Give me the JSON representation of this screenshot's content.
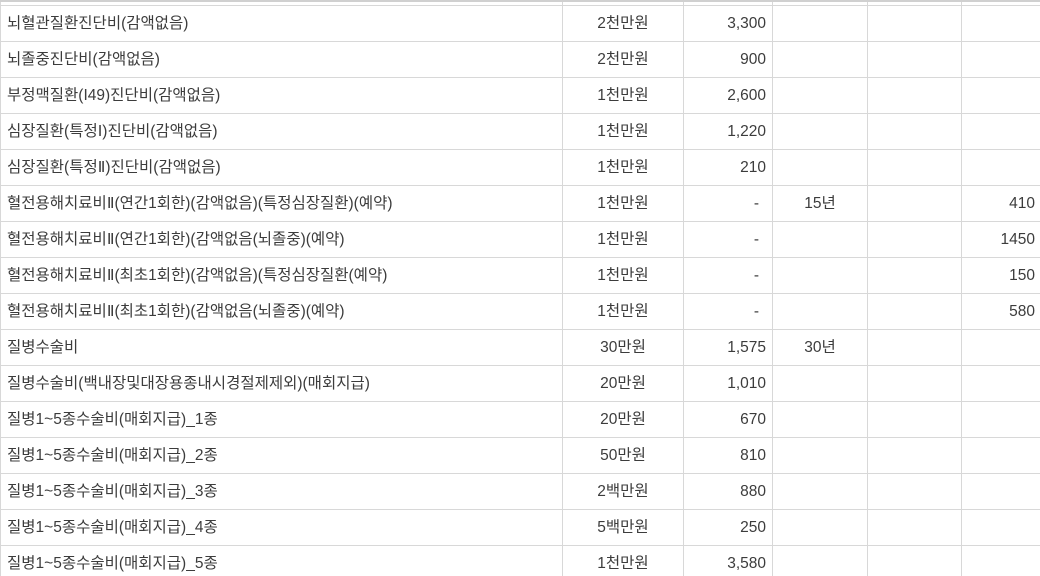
{
  "colors": {
    "grid": "#d8d8d8",
    "text": "#3c3c3c",
    "background": "#ffffff",
    "top_edge": "#d0d0d0"
  },
  "table": {
    "columns": [
      {
        "key": "item",
        "role": "coverage-item-name",
        "align": "left"
      },
      {
        "key": "amount",
        "role": "coverage-amount",
        "align": "center"
      },
      {
        "key": "premium",
        "role": "premium-value",
        "align": "right"
      },
      {
        "key": "period",
        "role": "term-period",
        "align": "center"
      },
      {
        "key": "extra",
        "role": "empty-column",
        "align": "center"
      },
      {
        "key": "value",
        "role": "right-value",
        "align": "right"
      }
    ],
    "rows": [
      {
        "item": "뇌혈관질환진단비(감액없음)",
        "amount": "2천만원",
        "premium": "3,300",
        "period": "",
        "extra": "",
        "value": ""
      },
      {
        "item": "뇌졸중진단비(감액없음)",
        "amount": "2천만원",
        "premium": "900",
        "period": "",
        "extra": "",
        "value": ""
      },
      {
        "item": "부정맥질환(I49)진단비(감액없음)",
        "amount": "1천만원",
        "premium": "2,600",
        "period": "",
        "extra": "",
        "value": ""
      },
      {
        "item": "심장질환(특정Ⅰ)진단비(감액없음)",
        "amount": "1천만원",
        "premium": "1,220",
        "period": "",
        "extra": "",
        "value": ""
      },
      {
        "item": "심장질환(특정Ⅱ)진단비(감액없음)",
        "amount": "1천만원",
        "premium": "210",
        "period": "",
        "extra": "",
        "value": ""
      },
      {
        "item": "혈전용해치료비Ⅱ(연간1회한)(감액없음)(특정심장질환)(예약)",
        "amount": "1천만원",
        "premium": "-",
        "period": "15년",
        "extra": "",
        "value": "410"
      },
      {
        "item": "혈전용해치료비Ⅱ(연간1회한)(감액없음(뇌졸중)(예약)",
        "amount": "1천만원",
        "premium": "-",
        "period": "",
        "extra": "",
        "value": "1450"
      },
      {
        "item": "혈전용해치료비Ⅱ(최초1회한)(감액없음)(특정심장질환(예약)",
        "amount": "1천만원",
        "premium": "-",
        "period": "",
        "extra": "",
        "value": "150"
      },
      {
        "item": "혈전용해치료비Ⅱ(최초1회한)(감액없음(뇌졸중)(예약)",
        "amount": "1천만원",
        "premium": "-",
        "period": "",
        "extra": "",
        "value": "580"
      },
      {
        "item": "질병수술비",
        "amount": "30만원",
        "premium": "1,575",
        "period": "30년",
        "extra": "",
        "value": ""
      },
      {
        "item": "질병수술비(백내장및대장용종내시경절제제외)(매회지급)",
        "amount": "20만원",
        "premium": "1,010",
        "period": "",
        "extra": "",
        "value": ""
      },
      {
        "item": "질병1~5종수술비(매회지급)_1종",
        "amount": "20만원",
        "premium": "670",
        "period": "",
        "extra": "",
        "value": ""
      },
      {
        "item": "질병1~5종수술비(매회지급)_2종",
        "amount": "50만원",
        "premium": "810",
        "period": "",
        "extra": "",
        "value": ""
      },
      {
        "item": "질병1~5종수술비(매회지급)_3종",
        "amount": "2백만원",
        "premium": "880",
        "period": "",
        "extra": "",
        "value": ""
      },
      {
        "item": "질병1~5종수술비(매회지급)_4종",
        "amount": "5백만원",
        "premium": "250",
        "period": "",
        "extra": "",
        "value": ""
      },
      {
        "item": "질병1~5종수술비(매회지급)_5종",
        "amount": "1천만원",
        "premium": "3,580",
        "period": "",
        "extra": "",
        "value": ""
      }
    ]
  }
}
